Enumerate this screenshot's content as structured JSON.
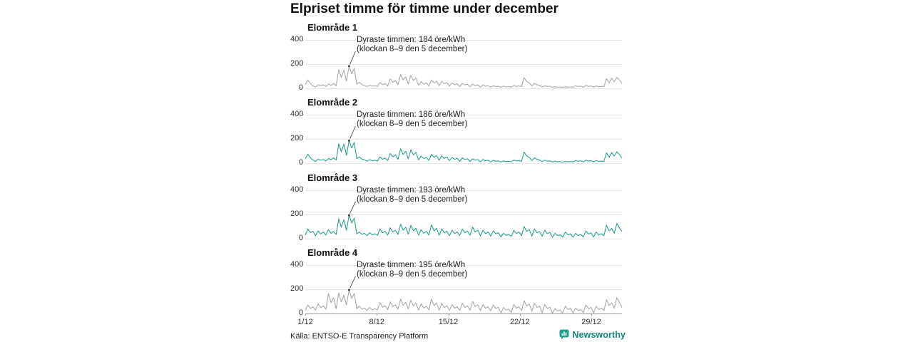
{
  "title": "Elpriset timme för timme under december",
  "source": "Källa: ENTSO-E Transparency Platform",
  "logo": {
    "text": "Newsworthy",
    "icon": "newsworthy-chart-bubble-icon",
    "color": "#1f9e8e"
  },
  "colors": {
    "teal_line": "#27a093",
    "gray_line": "#a9a9a9",
    "grid": "#e4e4e4",
    "axis": "#9a9a9a",
    "text": "#333333",
    "logo_text": "#17867c"
  },
  "chart_data": {
    "type": "line",
    "title": "Elpriset timme för timme under december",
    "xlabel": "",
    "ylabel": "öre/kWh",
    "ylim": [
      0,
      400
    ],
    "y_ticks": [
      400,
      200,
      0
    ],
    "x_tick_labels": [
      "1/12",
      "8/12",
      "15/12",
      "22/12",
      "29/12"
    ],
    "x_range_days": [
      1,
      32
    ],
    "hours_per_point": 6,
    "grid": true,
    "legend": "none",
    "panels": [
      {
        "name": "Elområde 1",
        "color": "#a9a9a9",
        "annotation": {
          "line1": "Dyraste timmen: 184 öre/kWh",
          "line2": "(klockan 8–9 den 5 december)",
          "peak_value": 184
        },
        "values": [
          30,
          70,
          40,
          20,
          12,
          30,
          22,
          28,
          15,
          35,
          25,
          40,
          20,
          155,
          90,
          150,
          60,
          184,
          120,
          165,
          35,
          50,
          30,
          25,
          15,
          25,
          18,
          22,
          15,
          48,
          30,
          40,
          20,
          78,
          50,
          65,
          30,
          115,
          70,
          95,
          35,
          108,
          65,
          85,
          25,
          55,
          35,
          45,
          20,
          70,
          45,
          60,
          22,
          58,
          38,
          48,
          18,
          45,
          30,
          38,
          15,
          42,
          28,
          35,
          12,
          35,
          22,
          28,
          10,
          28,
          18,
          22,
          10,
          22,
          15,
          18,
          8,
          18,
          12,
          15,
          10,
          24,
          16,
          20,
          15,
          88,
          55,
          45,
          20,
          42,
          30,
          25,
          12,
          22,
          16,
          18,
          8,
          15,
          10,
          12,
          8,
          14,
          10,
          12,
          10,
          22,
          15,
          18,
          10,
          24,
          16,
          20,
          10,
          20,
          14,
          16,
          15,
          80,
          45,
          85,
          55,
          90,
          70,
          40
        ]
      },
      {
        "name": "Elområde 2",
        "color": "#27a093",
        "annotation": {
          "line1": "Dyraste timmen: 186 öre/kWh",
          "line2": "(klockan 8–9 den 5 december)",
          "peak_value": 186
        },
        "values": [
          35,
          75,
          45,
          25,
          15,
          32,
          24,
          30,
          18,
          38,
          28,
          45,
          25,
          160,
          95,
          155,
          65,
          186,
          125,
          170,
          38,
          52,
          32,
          28,
          16,
          28,
          20,
          24,
          18,
          52,
          32,
          42,
          22,
          80,
          52,
          68,
          32,
          118,
          72,
          98,
          36,
          110,
          68,
          88,
          26,
          58,
          38,
          48,
          22,
          72,
          48,
          62,
          24,
          60,
          40,
          50,
          20,
          48,
          32,
          40,
          16,
          44,
          30,
          36,
          14,
          36,
          24,
          30,
          11,
          30,
          20,
          24,
          10,
          24,
          16,
          19,
          9,
          19,
          13,
          16,
          11,
          26,
          17,
          21,
          16,
          92,
          58,
          48,
          21,
          44,
          31,
          26,
          13,
          24,
          17,
          19,
          9,
          16,
          11,
          13,
          9,
          15,
          11,
          13,
          11,
          23,
          16,
          19,
          11,
          25,
          17,
          21,
          11,
          21,
          15,
          17,
          16,
          84,
          48,
          88,
          58,
          94,
          72,
          42
        ]
      },
      {
        "name": "Elområde 3",
        "color": "#27a093",
        "annotation": {
          "line1": "Dyraste timmen: 193 öre/kWh",
          "line2": "(klockan 8–9 den 5 december)",
          "peak_value": 193
        },
        "values": [
          30,
          80,
          50,
          60,
          25,
          65,
          40,
          55,
          30,
          75,
          45,
          60,
          35,
          165,
          95,
          155,
          70,
          193,
          130,
          170,
          40,
          55,
          35,
          45,
          25,
          50,
          32,
          40,
          28,
          80,
          48,
          60,
          30,
          90,
          55,
          70,
          35,
          120,
          70,
          95,
          38,
          110,
          65,
          85,
          28,
          75,
          45,
          60,
          30,
          115,
          65,
          85,
          28,
          80,
          48,
          62,
          25,
          70,
          42,
          55,
          26,
          80,
          48,
          62,
          28,
          95,
          55,
          70,
          24,
          70,
          42,
          55,
          22,
          65,
          40,
          50,
          15,
          45,
          28,
          35,
          20,
          70,
          42,
          55,
          25,
          100,
          60,
          75,
          22,
          80,
          48,
          60,
          20,
          70,
          42,
          52,
          12,
          45,
          26,
          32,
          14,
          55,
          32,
          40,
          12,
          45,
          26,
          34,
          16,
          65,
          38,
          48,
          14,
          55,
          32,
          42,
          25,
          110,
          65,
          85,
          45,
          125,
          90,
          60
        ]
      },
      {
        "name": "Elområde 4",
        "color": "#a9a9a9",
        "annotation": {
          "line1": "Dyraste timmen: 195 öre/kWh",
          "line2": "(klockan 8–9 den 5 december)",
          "peak_value": 195
        },
        "values": [
          25,
          70,
          42,
          55,
          28,
          80,
          48,
          65,
          35,
          165,
          90,
          130,
          40,
          170,
          95,
          150,
          70,
          195,
          125,
          165,
          40,
          60,
          36,
          46,
          25,
          50,
          30,
          40,
          30,
          90,
          52,
          65,
          32,
          95,
          56,
          72,
          36,
          120,
          68,
          92,
          38,
          110,
          64,
          84,
          28,
          80,
          46,
          60,
          30,
          120,
          66,
          86,
          28,
          85,
          50,
          64,
          25,
          75,
          44,
          56,
          26,
          85,
          50,
          64,
          28,
          100,
          58,
          72,
          24,
          75,
          44,
          56,
          22,
          70,
          42,
          52,
          5,
          50,
          28,
          36,
          8,
          75,
          44,
          56,
          25,
          105,
          62,
          78,
          20,
          85,
          50,
          62,
          5,
          75,
          42,
          52,
          3,
          40,
          22,
          28,
          5,
          60,
          34,
          42,
          3,
          45,
          25,
          32,
          8,
          70,
          40,
          50,
          5,
          60,
          34,
          44,
          25,
          115,
          66,
          88,
          45,
          130,
          92,
          50
        ]
      }
    ]
  }
}
